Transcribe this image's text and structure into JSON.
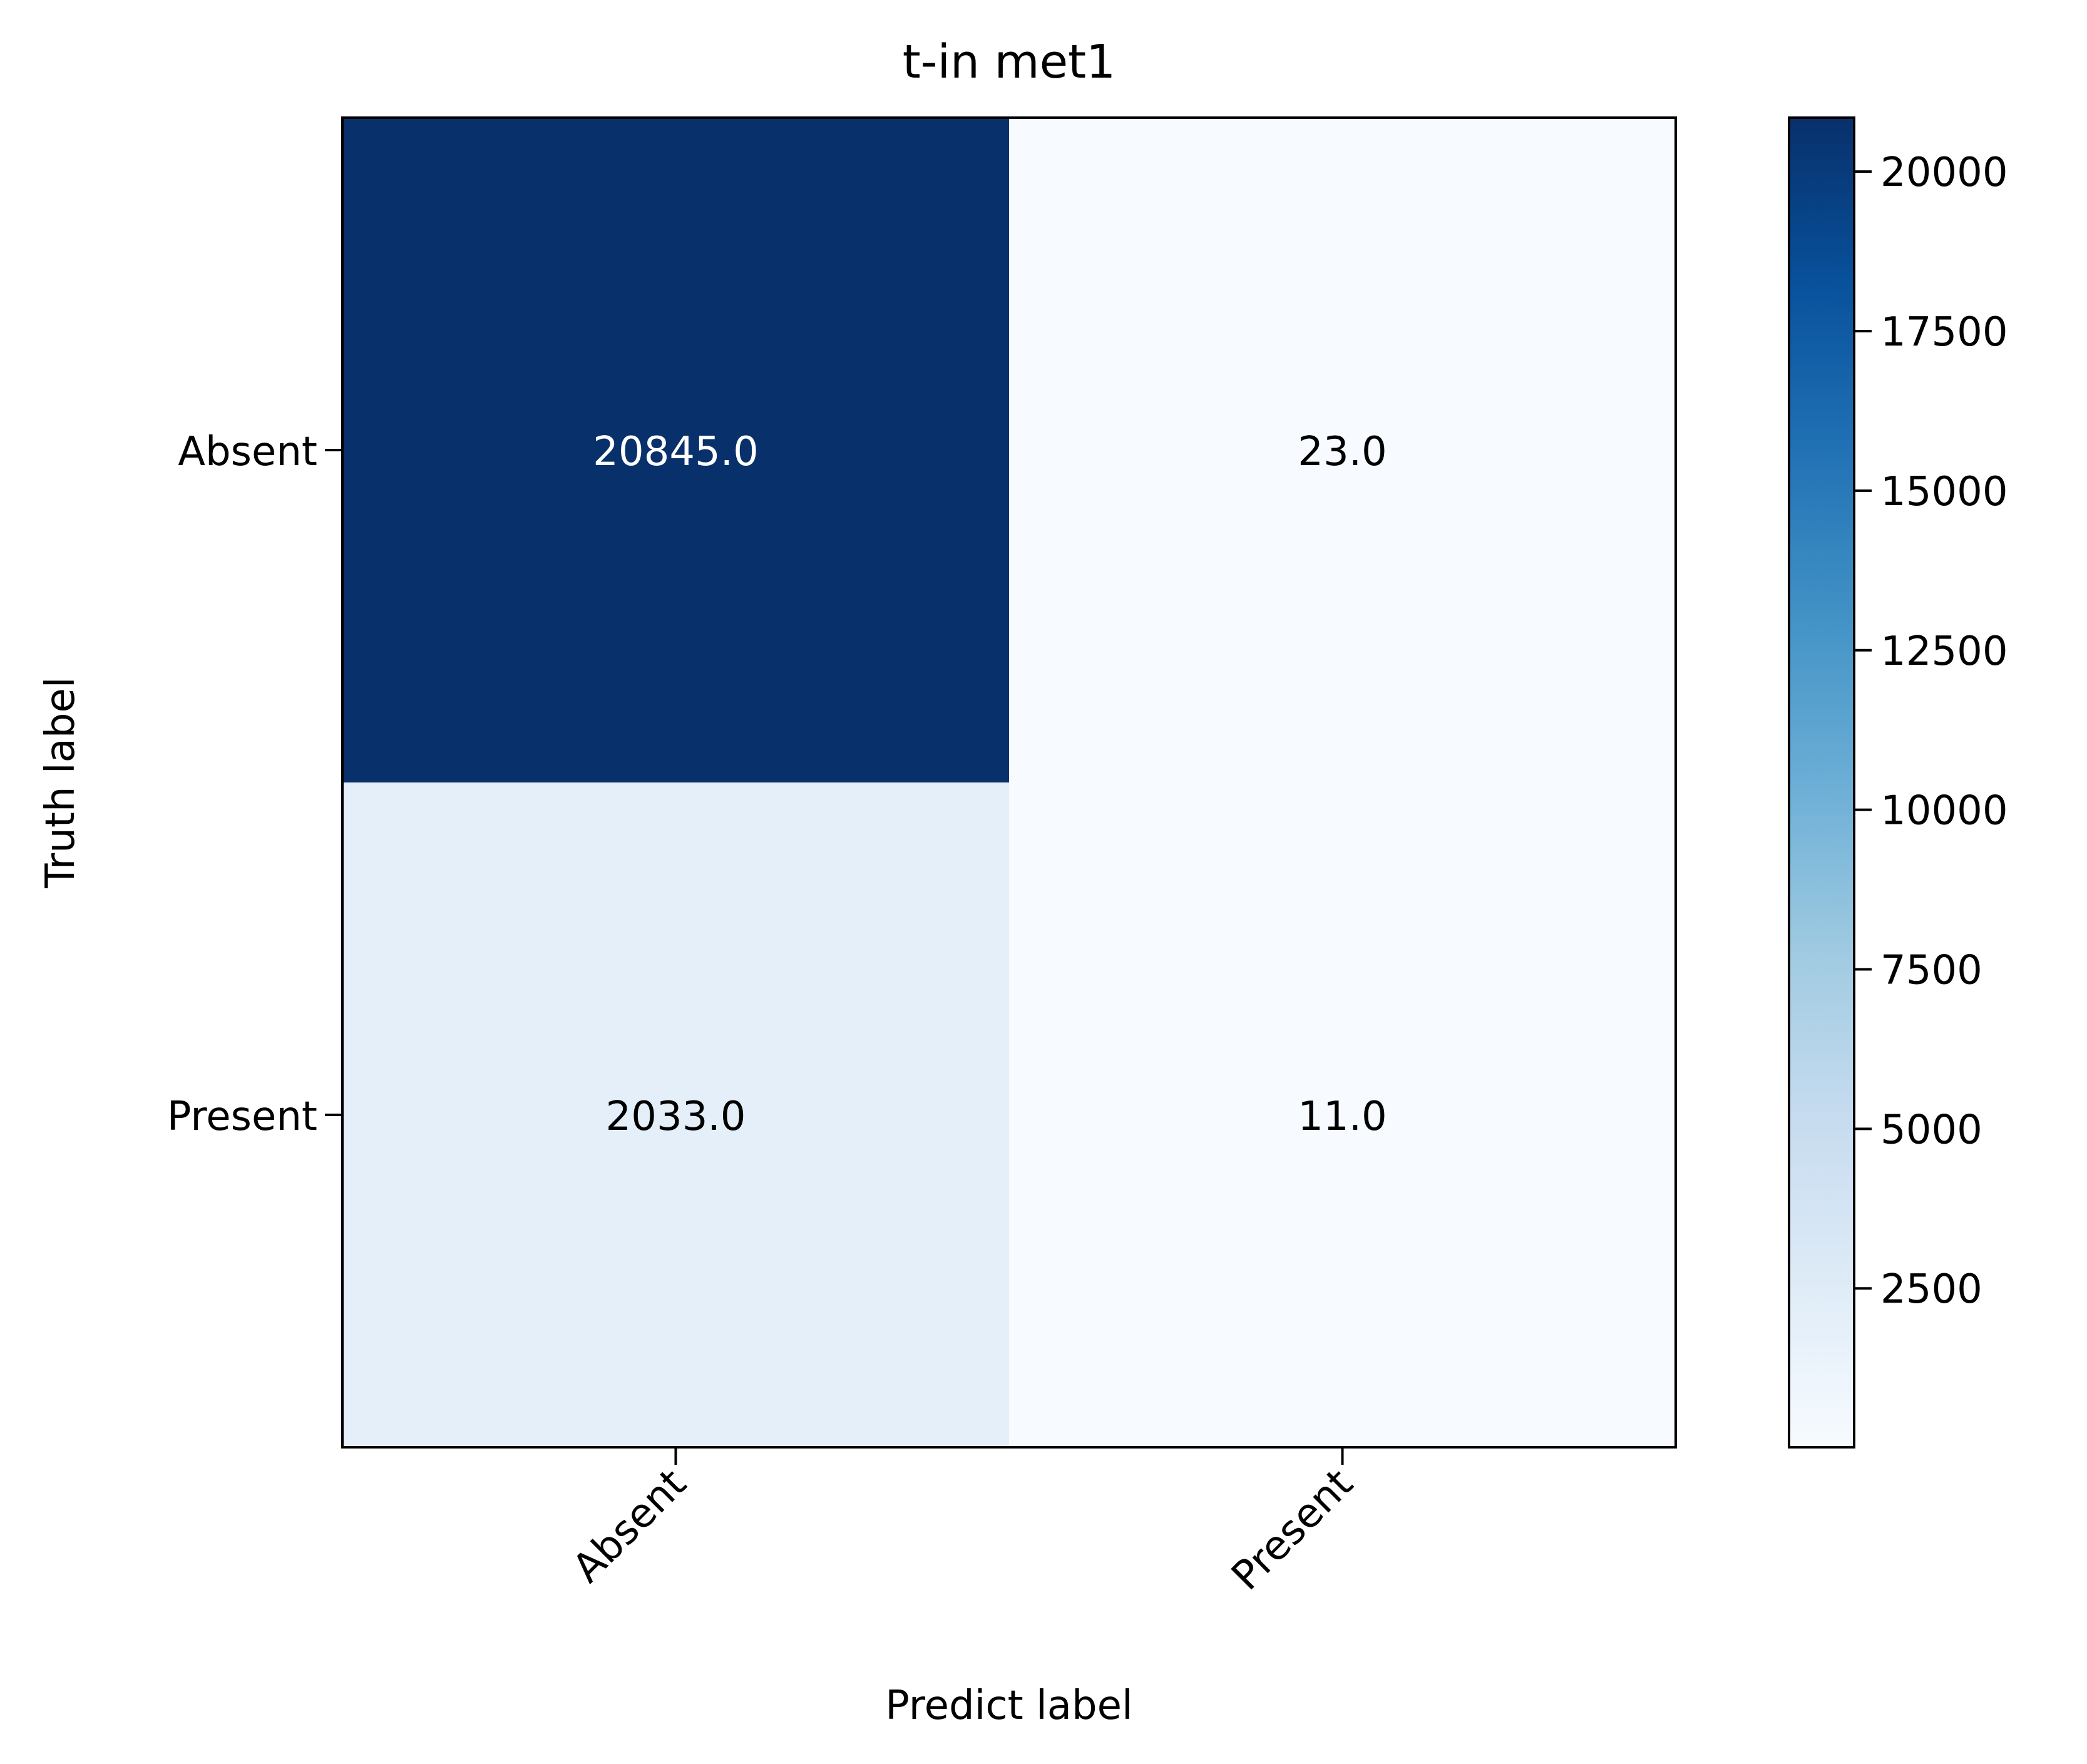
{
  "chart_data": {
    "type": "heatmap",
    "title": "t-in met1",
    "xlabel": "Predict label",
    "ylabel": "Truth label",
    "x_categories": [
      "Absent",
      "Present"
    ],
    "y_categories": [
      "Absent",
      "Present"
    ],
    "cells": [
      {
        "row": 0,
        "col": 0,
        "value": 20845,
        "label": "20845.0"
      },
      {
        "row": 0,
        "col": 1,
        "value": 23,
        "label": "23.0"
      },
      {
        "row": 1,
        "col": 0,
        "value": 2033,
        "label": "2033.0"
      },
      {
        "row": 1,
        "col": 1,
        "value": 11,
        "label": "11.0"
      }
    ],
    "colorbar": {
      "colormap": "Blues",
      "vmin": 11,
      "vmax": 20845,
      "ticks": [
        2500,
        5000,
        7500,
        10000,
        12500,
        15000,
        17500,
        20000
      ],
      "tick_labels": [
        "2500",
        "5000",
        "7500",
        "10000",
        "12500",
        "15000",
        "17500",
        "20000"
      ]
    },
    "grid": false,
    "legend": "none"
  }
}
